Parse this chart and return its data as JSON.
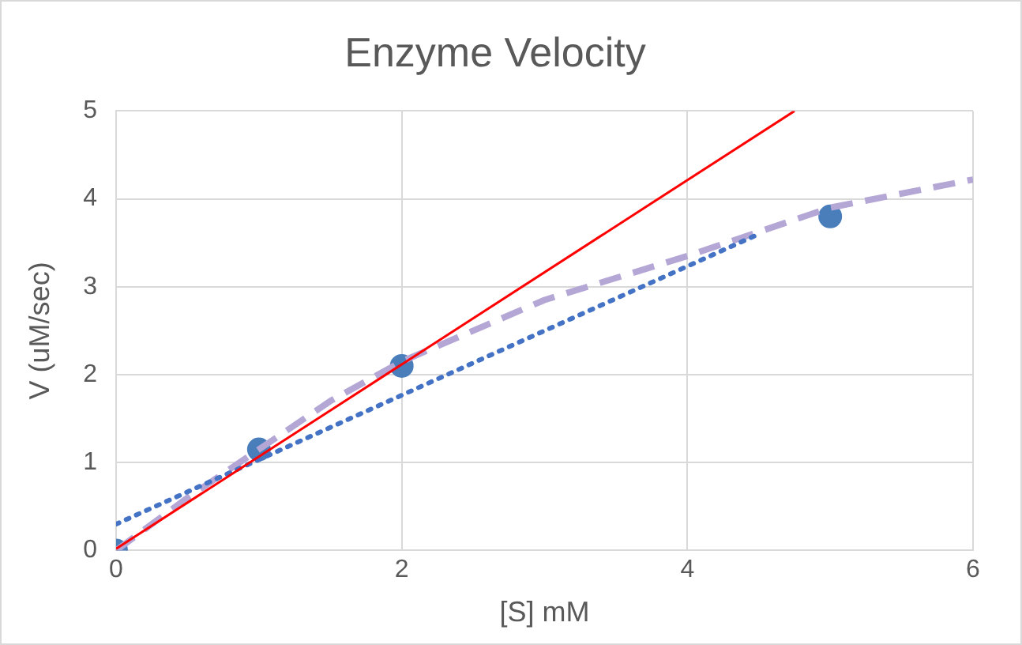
{
  "chart_data": {
    "type": "scatter",
    "title": "Enzyme Velocity",
    "xlabel": "[S] mM",
    "ylabel": "V (uM/sec)",
    "xlim": [
      0,
      6
    ],
    "xticks": [
      0,
      2,
      4,
      6
    ],
    "ylim": [
      0,
      5
    ],
    "yticks": [
      0,
      1,
      2,
      3,
      4,
      5
    ],
    "grid": true,
    "legend": false,
    "series": [
      {
        "type": "line",
        "color": "#ff0000",
        "line_style": "solid",
        "marker": "none",
        "x": [
          0,
          4.75
        ],
        "values": [
          0.02,
          5
        ]
      },
      {
        "type": "line",
        "color": "#4472c4",
        "line_style": "dotted",
        "marker": "none",
        "x": [
          0,
          4.5
        ],
        "values": [
          0.3,
          3.6
        ]
      },
      {
        "type": "line",
        "color": "#b4a7d6",
        "line_style": "dashed",
        "marker": "none",
        "x": [
          0,
          0.5,
          1,
          1.5,
          2,
          3,
          4,
          5,
          6
        ],
        "values": [
          0,
          0.6,
          1.15,
          1.7,
          2.15,
          2.85,
          3.35,
          3.9,
          4.22
        ]
      },
      {
        "color": "#4a7ebb",
        "marker": "circle",
        "x": [
          0,
          1,
          2,
          5
        ],
        "values": [
          0,
          1.15,
          2.1,
          3.8
        ]
      }
    ]
  }
}
